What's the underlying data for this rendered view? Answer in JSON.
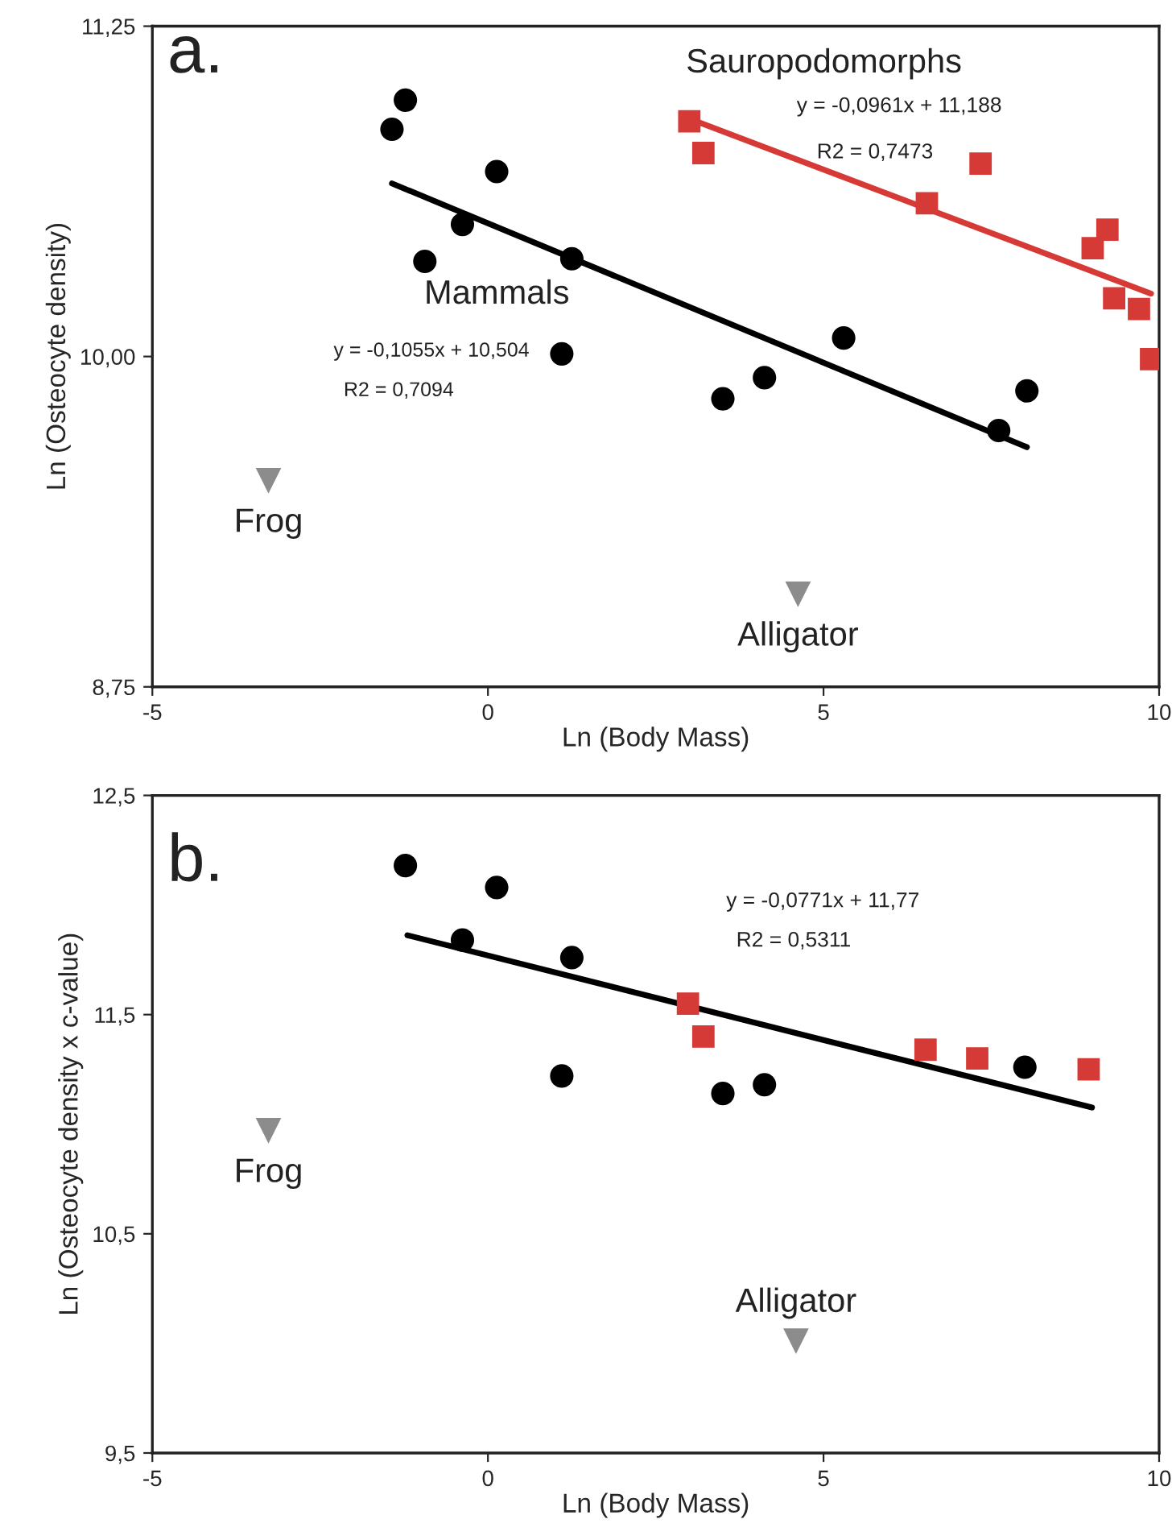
{
  "chart_data": [
    {
      "type": "scatter",
      "xlabel": "Ln (Body Mass)",
      "ylabel": "Ln (Osteocyte density)",
      "xlim": [
        -5,
        10
      ],
      "xticks": [
        -5,
        0,
        5,
        10
      ],
      "ylim": [
        8.75,
        11.25
      ],
      "yticks": [
        {
          "value": 8.75,
          "label": "8,75"
        },
        {
          "value": 10.0,
          "label": "10,00"
        },
        {
          "value": 11.25,
          "label": "11,25"
        }
      ],
      "grid": false,
      "legend": false,
      "annotations": [
        "a.",
        "y = -0,0961x + 11,188",
        "R2 = 0,7473",
        "y = -0,1055x + 10,504",
        "R2 = 0,7094"
      ],
      "series": [
        {
          "name": "Mammals",
          "type": "scatter",
          "marker": "circle",
          "color": "#000000",
          "x": [
            -1.43,
            -1.23,
            0.13,
            -0.38,
            -0.94,
            1.25,
            1.1,
            5.3,
            4.12,
            3.5,
            7.61,
            8.03
          ],
          "values": [
            10.86,
            10.97,
            10.7,
            10.5,
            10.36,
            10.37,
            10.01,
            10.07,
            9.92,
            9.84,
            9.72,
            9.87
          ]
        },
        {
          "name": "Sauropodomorphs",
          "type": "scatter",
          "marker": "square",
          "color": "#d63a36",
          "x": [
            3.0,
            3.21,
            7.34,
            6.54,
            9.23,
            9.01,
            9.33,
            9.7,
            9.88
          ],
          "values": [
            10.89,
            10.77,
            10.73,
            10.58,
            10.48,
            10.41,
            10.22,
            10.18,
            9.99
          ]
        },
        {
          "type": "line",
          "color": "#000000",
          "x": [
            -1.43,
            8.03
          ],
          "values": [
            10.655,
            9.657
          ]
        },
        {
          "type": "line",
          "color": "#d63a36",
          "x": [
            3.0,
            9.88
          ],
          "values": [
            10.9,
            10.238
          ]
        },
        {
          "name": "Frog",
          "type": "scatter",
          "marker": "triangle",
          "color": "#8c8c8c",
          "x": [
            -3.27
          ],
          "values": [
            9.53
          ]
        },
        {
          "name": "Alligator",
          "type": "scatter",
          "marker": "triangle",
          "color": "#8c8c8c",
          "x": [
            4.62
          ],
          "values": [
            9.1
          ]
        }
      ]
    },
    {
      "type": "scatter",
      "xlabel": "Ln (Body Mass)",
      "ylabel": "Ln (Osteocyte density x c-value)",
      "xlim": [
        -5,
        10
      ],
      "xticks": [
        -5,
        0,
        5,
        10
      ],
      "ylim": [
        9.5,
        12.5
      ],
      "yticks": [
        {
          "value": 9.5,
          "label": "9,5"
        },
        {
          "value": 10.5,
          "label": "10,5"
        },
        {
          "value": 11.5,
          "label": "11,5"
        },
        {
          "value": 12.5,
          "label": "12,5"
        }
      ],
      "grid": false,
      "legend": false,
      "annotations": [
        "b.",
        "y = -0,0771x + 11,77",
        "R2 = 0,5311"
      ],
      "series": [
        {
          "type": "scatter",
          "marker": "circle",
          "color": "#000000",
          "x": [
            -1.23,
            0.13,
            -0.38,
            1.25,
            1.1,
            3.5,
            4.12,
            8.0
          ],
          "values": [
            12.18,
            12.08,
            11.84,
            11.76,
            11.22,
            11.14,
            11.18,
            11.26
          ]
        },
        {
          "type": "scatter",
          "marker": "square",
          "color": "#d63a36",
          "x": [
            2.98,
            3.21,
            6.52,
            7.29,
            8.95
          ],
          "values": [
            11.55,
            11.4,
            11.34,
            11.3,
            11.25
          ]
        },
        {
          "type": "line",
          "color": "#000000",
          "x": [
            -1.2,
            9.0
          ],
          "values": [
            11.862,
            11.076
          ]
        },
        {
          "name": "Frog",
          "type": "scatter",
          "marker": "triangle",
          "color": "#8c8c8c",
          "x": [
            -3.27
          ],
          "values": [
            10.97
          ]
        },
        {
          "name": "Alligator",
          "type": "scatter",
          "marker": "triangle",
          "color": "#8c8c8c",
          "x": [
            4.59
          ],
          "values": [
            10.01
          ]
        }
      ]
    }
  ]
}
